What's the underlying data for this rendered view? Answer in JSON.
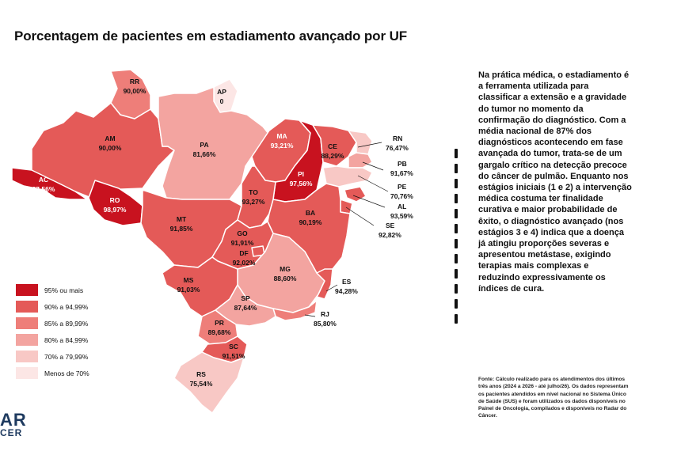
{
  "title": "Porcentagem de pacientes em estadiamento avançado por UF",
  "colors": {
    "c95": "#c8121f",
    "c90": "#e45a58",
    "c85": "#ee7e79",
    "c80": "#f3a4a0",
    "c70": "#f8c8c5",
    "c00": "#fce6e5"
  },
  "legend": [
    {
      "label": "95% ou mais",
      "color": "#c8121f"
    },
    {
      "label": "90% a 94,99%",
      "color": "#e45a58"
    },
    {
      "label": "85% a 89,99%",
      "color": "#ee7e79"
    },
    {
      "label": "80% a 84,99%",
      "color": "#f3a4a0"
    },
    {
      "label": "70% a 79,99%",
      "color": "#f8c8c5"
    },
    {
      "label": "Menos de 70%",
      "color": "#fce6e5"
    }
  ],
  "states": {
    "RR": {
      "uf": "RR",
      "value": "90,00%"
    },
    "AP": {
      "uf": "AP",
      "value": "0"
    },
    "AM": {
      "uf": "AM",
      "value": "90,00%"
    },
    "PA": {
      "uf": "PA",
      "value": "81,66%"
    },
    "MA": {
      "uf": "MA",
      "value": "93,21%"
    },
    "CE": {
      "uf": "CE",
      "value": "88,29%"
    },
    "RN": {
      "uf": "RN",
      "value": "76,47%"
    },
    "PB": {
      "uf": "PB",
      "value": "91,67%"
    },
    "PE": {
      "uf": "PE",
      "value": "70,76%"
    },
    "AL": {
      "uf": "AL",
      "value": "93,59%"
    },
    "SE": {
      "uf": "SE",
      "value": "92,82%"
    },
    "PI": {
      "uf": "PI",
      "value": "97,56%"
    },
    "AC": {
      "uf": "AC",
      "value": "97,56%"
    },
    "RO": {
      "uf": "RO",
      "value": "98,97%"
    },
    "TO": {
      "uf": "TO",
      "value": "93,27%"
    },
    "BA": {
      "uf": "BA",
      "value": "90,19%"
    },
    "MT": {
      "uf": "MT",
      "value": "91,85%"
    },
    "GO": {
      "uf": "GO",
      "value": "91,91%"
    },
    "DF": {
      "uf": "DF",
      "value": "92,02%"
    },
    "MG": {
      "uf": "MG",
      "value": "88,60%"
    },
    "ES": {
      "uf": "ES",
      "value": "94,28%"
    },
    "MS": {
      "uf": "MS",
      "value": "91,03%"
    },
    "SP": {
      "uf": "SP",
      "value": "87,64%"
    },
    "RJ": {
      "uf": "RJ",
      "value": "85,80%"
    },
    "PR": {
      "uf": "PR",
      "value": "89,68%"
    },
    "SC": {
      "uf": "SC",
      "value": "91,51%"
    },
    "RS": {
      "uf": "RS",
      "value": "75,54%"
    }
  },
  "side_text": "Na prática médica, o estadiamento é a ferramenta utilizada para classificar a extensão e a gravidade do tumor no momento da confirmação do diagnóstico. Com a média nacional de 87% dos diagnósticos acontecendo em fase avançada do tumor, trata-se de um gargalo crítico na detecção precoce do câncer de pulmão. Enquanto nos estágios iniciais (1 e 2) a intervenção médica costuma ter finalidade curativa e maior probabilidade de êxito, o diagnóstico avançado (nos estágios 3 e 4) indica que a doença já atingiu proporções severas e apresentou metástase, exigindo terapias mais complexas e reduzindo expressivamente os índices de cura.",
  "note": "Fonte: Cálculo realizado para os atendimentos dos últimos três anos (2024 a 2026 - até julho/26). Os dados representam os pacientes atendidos em nível nacional no Sistema Único de Saúde (SUS) e foram utilizados os dados disponíveis no Painel de Oncologia, compilados e disponíveis no Radar do Câncer.",
  "logo": {
    "line1": "AR",
    "line2": "CER"
  }
}
